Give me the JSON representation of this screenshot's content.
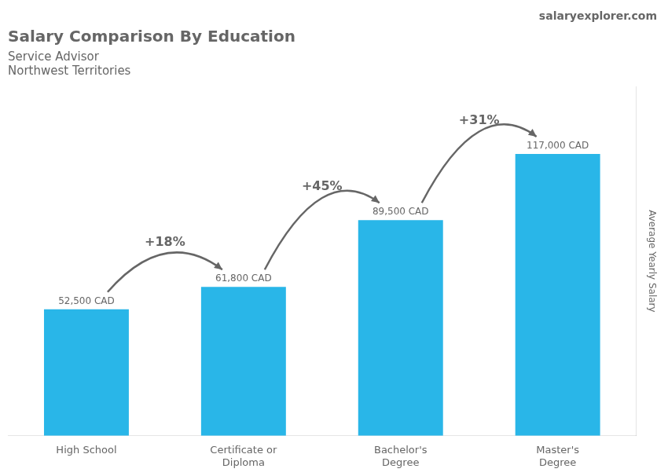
{
  "chart_data": {
    "type": "bar",
    "title": "Salary Comparison By Education",
    "subtitle": [
      "Service Advisor",
      "Northwest Territories"
    ],
    "source": "salaryexplorer.com",
    "ylabel": "Average Yearly Salary",
    "categories": [
      "High School",
      "Certificate or\nDiploma",
      "Bachelor's\nDegree",
      "Master's\nDegree"
    ],
    "values": [
      52500,
      61800,
      89500,
      117000
    ],
    "value_labels": [
      "52,500 CAD",
      "61,800 CAD",
      "89,500 CAD",
      "117,000 CAD"
    ],
    "data_labels": true,
    "annotations": [
      "+18%",
      "+45%",
      "+31%"
    ],
    "color": "#29b6e8",
    "ylim": [
      0,
      145000
    ],
    "tick_labels": "x",
    "grid": false
  }
}
